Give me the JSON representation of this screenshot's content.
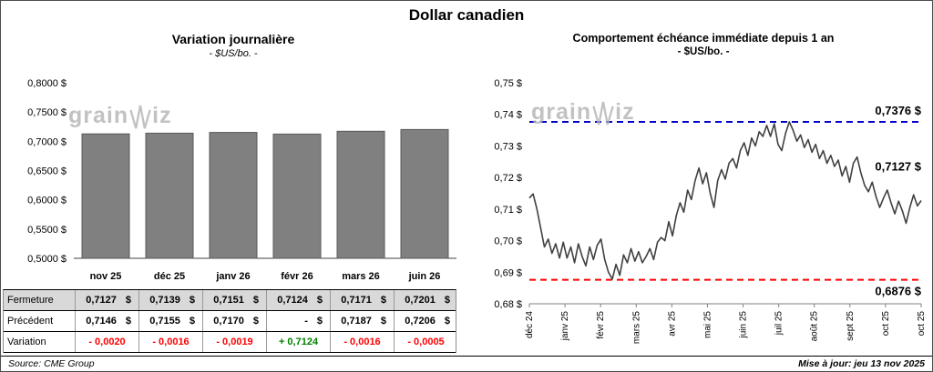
{
  "title": "Dollar canadien",
  "watermark": {
    "prefix": "grain",
    "suffix": "iz"
  },
  "colors": {
    "negative": "#FF0000",
    "positive": "#008000",
    "resistance_blue": "#0000C8",
    "support_red": "#FF0000",
    "bar": "#808080",
    "bar_border": "#595959",
    "line": "#404040",
    "table_shade": "#D9D9D9"
  },
  "left_panel": {
    "table": {
      "rows": [
        {
          "label": "Fermeture",
          "shaded": true,
          "suffix": "$",
          "values": [
            "0,7127",
            "0,7139",
            "0,7151",
            "0,7124",
            "0,7171",
            "0,7201"
          ]
        },
        {
          "label": "Précédent",
          "shaded": false,
          "suffix": "$",
          "values": [
            "0,7146",
            "0,7155",
            "0,7170",
            "-",
            "0,7187",
            "0,7206"
          ]
        },
        {
          "label": "Variation",
          "shaded": false,
          "suffix": "",
          "values": [
            "- 0,0020",
            "- 0,0016",
            "- 0,0019",
            "+ 0,7124",
            "- 0,0016",
            "- 0,0005"
          ]
        }
      ]
    }
  },
  "chart_data": [
    {
      "type": "bar",
      "title": "Variation  journalière",
      "subtitle": "- $US/bo. -",
      "categories": [
        "nov 25",
        "déc 25",
        "janv 26",
        "févr 26",
        "mars 26",
        "juin 26"
      ],
      "values": [
        0.7127,
        0.7139,
        0.7151,
        0.7124,
        0.7171,
        0.7201
      ],
      "ylim": [
        0.5,
        0.8
      ],
      "ytick_step": 0.05,
      "ytick_labels": [
        "0,5000 $",
        "0,5500 $",
        "0,6000 $",
        "0,6500 $",
        "0,7000 $",
        "0,7500 $",
        "0,8000 $"
      ],
      "grid": false,
      "legend": "none"
    },
    {
      "type": "line",
      "title": "Comportement échéance immédiate depuis 1 an",
      "subtitle": "- $US/bo. -",
      "x_labels": [
        "déc 24",
        "janv 25",
        "févr 25",
        "mars 25",
        "avr 25",
        "mai 25",
        "juin 25",
        "juil 25",
        "août 25",
        "sept 25",
        "oct 25",
        "oct 25"
      ],
      "ylim": [
        0.68,
        0.75
      ],
      "ytick_step": 0.01,
      "ytick_labels": [
        "0,68 $",
        "0,69 $",
        "0,70 $",
        "0,71 $",
        "0,72 $",
        "0,73 $",
        "0,74 $",
        "0,75 $"
      ],
      "grid": false,
      "legend": "none",
      "resistance": {
        "value": 0.7376,
        "label": "0,7376 $"
      },
      "support": {
        "value": 0.6876,
        "label": "0,6876 $"
      },
      "last": {
        "value": 0.7127,
        "label": "0,7127 $"
      },
      "values": [
        0.7135,
        0.7148,
        0.71,
        0.704,
        0.698,
        0.7005,
        0.696,
        0.699,
        0.6945,
        0.6995,
        0.6945,
        0.698,
        0.693,
        0.699,
        0.695,
        0.692,
        0.698,
        0.694,
        0.6985,
        0.7005,
        0.694,
        0.69,
        0.6878,
        0.6925,
        0.689,
        0.6955,
        0.693,
        0.6975,
        0.6935,
        0.6965,
        0.693,
        0.695,
        0.6975,
        0.694,
        0.6995,
        0.701,
        0.7,
        0.706,
        0.7015,
        0.708,
        0.712,
        0.709,
        0.716,
        0.713,
        0.719,
        0.723,
        0.718,
        0.7215,
        0.715,
        0.7105,
        0.719,
        0.7225,
        0.7195,
        0.7245,
        0.726,
        0.723,
        0.7285,
        0.731,
        0.727,
        0.7325,
        0.73,
        0.7345,
        0.733,
        0.7365,
        0.733,
        0.737,
        0.7305,
        0.7285,
        0.734,
        0.7376,
        0.735,
        0.7315,
        0.7335,
        0.7295,
        0.732,
        0.728,
        0.7305,
        0.726,
        0.7285,
        0.7245,
        0.727,
        0.7235,
        0.7255,
        0.7205,
        0.7235,
        0.7185,
        0.7245,
        0.7265,
        0.7215,
        0.7175,
        0.7155,
        0.7185,
        0.714,
        0.7105,
        0.7135,
        0.716,
        0.712,
        0.7085,
        0.7125,
        0.7095,
        0.7055,
        0.7105,
        0.7145,
        0.711,
        0.7127
      ]
    }
  ],
  "footer": {
    "source": "Source: CME Group",
    "updated": "Mise à jour: jeu 13 nov 2025"
  }
}
